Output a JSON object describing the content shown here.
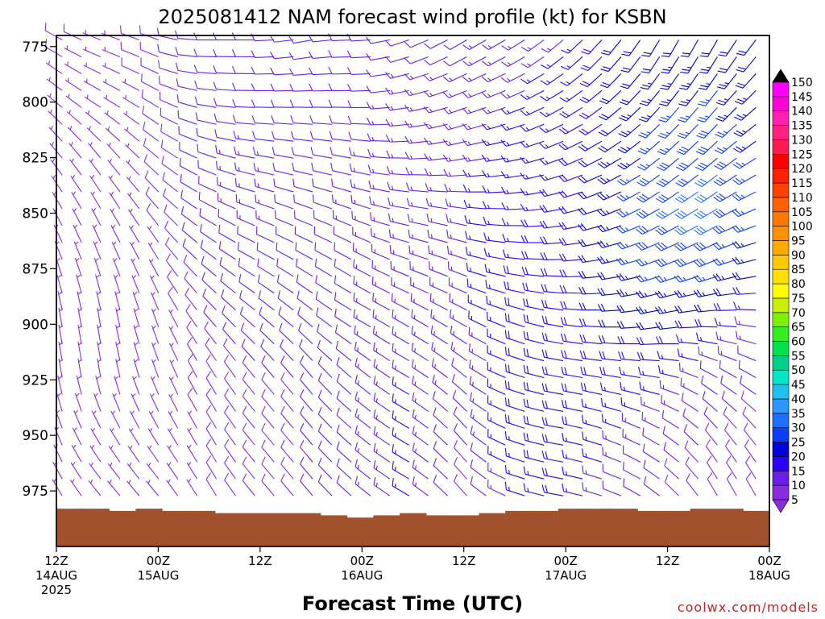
{
  "chart_data": {
    "type": "wind_barbs",
    "title": "2025081412 NAM forecast wind profile (kt) for KSBN",
    "xlabel": "Forecast Time (UTC)",
    "credit": "coolwx.com/models",
    "y_units": "hPa",
    "ylim": [
      1000,
      770
    ],
    "y_ticks": [
      775,
      800,
      825,
      850,
      875,
      900,
      925,
      950,
      975
    ],
    "x_hours_range": [
      0,
      84
    ],
    "x_ticks": [
      {
        "hour": 0,
        "label": "12Z",
        "sub": "14AUG",
        "sub2": "2025"
      },
      {
        "hour": 12,
        "label": "00Z",
        "sub": "15AUG",
        "sub2": ""
      },
      {
        "hour": 24,
        "label": "12Z",
        "sub": "",
        "sub2": ""
      },
      {
        "hour": 36,
        "label": "00Z",
        "sub": "16AUG",
        "sub2": ""
      },
      {
        "hour": 48,
        "label": "12Z",
        "sub": "",
        "sub2": ""
      },
      {
        "hour": 60,
        "label": "00Z",
        "sub": "17AUG",
        "sub2": ""
      },
      {
        "hour": 72,
        "label": "12Z",
        "sub": "",
        "sub2": ""
      },
      {
        "hour": 84,
        "label": "00Z",
        "sub": "18AUG",
        "sub2": ""
      }
    ],
    "colorbar": {
      "units": "kt",
      "levels": [
        5,
        10,
        15,
        20,
        25,
        30,
        35,
        40,
        45,
        50,
        55,
        60,
        65,
        70,
        75,
        80,
        85,
        90,
        95,
        100,
        105,
        110,
        115,
        120,
        125,
        130,
        135,
        140,
        145,
        150
      ],
      "colors": [
        "#8a2be2",
        "#6a1ee6",
        "#2a00ff",
        "#0000dd",
        "#0a3cff",
        "#1e6eff",
        "#2a96ff",
        "#1ec0f0",
        "#00e6c8",
        "#00d08c",
        "#00e050",
        "#33ee22",
        "#7ef000",
        "#c8f000",
        "#ffff00",
        "#ffe000",
        "#ffc800",
        "#ffaa00",
        "#ff9000",
        "#ff7800",
        "#ff6000",
        "#ff4000",
        "#ff2000",
        "#ff0000",
        "#ff1a50",
        "#ff2080",
        "#ff20b0",
        "#ff00d8",
        "#ff00ff"
      ]
    },
    "surface": {
      "color": "#a0522d",
      "pressure_hpa": [
        983,
        983,
        984,
        983,
        984,
        984,
        985,
        985,
        985,
        985,
        986,
        987,
        986,
        985,
        986,
        986,
        985,
        984,
        984,
        983,
        983,
        983,
        984,
        984,
        983,
        983,
        984
      ]
    },
    "wind_profile_note": "barb field; each barb = wind direction (deg) and speed (kt) at hour/pressure",
    "wind_profile_columns": [
      {
        "hour": 0,
        "levels": [
          [
            775,
            300,
            8
          ],
          [
            800,
            310,
            6
          ],
          [
            825,
            320,
            7
          ],
          [
            850,
            330,
            7
          ],
          [
            875,
            340,
            6
          ],
          [
            900,
            350,
            5
          ],
          [
            925,
            350,
            4
          ],
          [
            950,
            340,
            4
          ],
          [
            975,
            330,
            4
          ]
        ]
      },
      {
        "hour": 6,
        "levels": [
          [
            775,
            290,
            7
          ],
          [
            800,
            300,
            6
          ],
          [
            825,
            320,
            6
          ],
          [
            850,
            330,
            6
          ],
          [
            875,
            340,
            5
          ],
          [
            900,
            350,
            4
          ],
          [
            925,
            350,
            4
          ],
          [
            950,
            330,
            3
          ],
          [
            975,
            320,
            3
          ]
        ]
      },
      {
        "hour": 12,
        "levels": [
          [
            775,
            290,
            9
          ],
          [
            800,
            300,
            8
          ],
          [
            825,
            310,
            8
          ],
          [
            850,
            320,
            8
          ],
          [
            875,
            330,
            7
          ],
          [
            900,
            340,
            6
          ],
          [
            925,
            340,
            5
          ],
          [
            950,
            330,
            5
          ],
          [
            975,
            320,
            5
          ]
        ]
      },
      {
        "hour": 18,
        "levels": [
          [
            775,
            270,
            12
          ],
          [
            800,
            280,
            12
          ],
          [
            825,
            290,
            12
          ],
          [
            850,
            300,
            12
          ],
          [
            875,
            310,
            11
          ],
          [
            900,
            320,
            10
          ],
          [
            925,
            330,
            9
          ],
          [
            950,
            330,
            8
          ],
          [
            975,
            330,
            8
          ]
        ]
      },
      {
        "hour": 24,
        "levels": [
          [
            775,
            270,
            12
          ],
          [
            800,
            270,
            12
          ],
          [
            825,
            280,
            13
          ],
          [
            850,
            290,
            13
          ],
          [
            875,
            300,
            12
          ],
          [
            900,
            310,
            11
          ],
          [
            925,
            320,
            10
          ],
          [
            950,
            320,
            9
          ],
          [
            975,
            320,
            8
          ]
        ]
      },
      {
        "hour": 30,
        "levels": [
          [
            775,
            260,
            10
          ],
          [
            800,
            270,
            11
          ],
          [
            825,
            280,
            12
          ],
          [
            850,
            290,
            12
          ],
          [
            875,
            300,
            11
          ],
          [
            900,
            310,
            10
          ],
          [
            925,
            320,
            10
          ],
          [
            950,
            320,
            10
          ],
          [
            975,
            320,
            10
          ]
        ]
      },
      {
        "hour": 36,
        "levels": [
          [
            775,
            270,
            10
          ],
          [
            800,
            270,
            11
          ],
          [
            825,
            280,
            12
          ],
          [
            850,
            290,
            13
          ],
          [
            875,
            300,
            12
          ],
          [
            900,
            300,
            12
          ],
          [
            925,
            310,
            12
          ],
          [
            950,
            310,
            12
          ],
          [
            975,
            310,
            12
          ]
        ]
      },
      {
        "hour": 42,
        "levels": [
          [
            775,
            250,
            12
          ],
          [
            800,
            260,
            14
          ],
          [
            825,
            270,
            15
          ],
          [
            850,
            280,
            15
          ],
          [
            875,
            290,
            15
          ],
          [
            900,
            300,
            15
          ],
          [
            925,
            300,
            15
          ],
          [
            950,
            300,
            16
          ],
          [
            975,
            300,
            16
          ]
        ]
      },
      {
        "hour": 48,
        "levels": [
          [
            775,
            240,
            12
          ],
          [
            800,
            250,
            13
          ],
          [
            825,
            260,
            14
          ],
          [
            850,
            280,
            14
          ],
          [
            875,
            290,
            14
          ],
          [
            900,
            300,
            13
          ],
          [
            925,
            310,
            12
          ],
          [
            950,
            320,
            10
          ],
          [
            975,
            320,
            8
          ]
        ]
      },
      {
        "hour": 54,
        "levels": [
          [
            775,
            240,
            14
          ],
          [
            800,
            250,
            15
          ],
          [
            825,
            260,
            16
          ],
          [
            850,
            270,
            17
          ],
          [
            875,
            280,
            17
          ],
          [
            900,
            290,
            18
          ],
          [
            925,
            290,
            18
          ],
          [
            950,
            290,
            17
          ],
          [
            975,
            290,
            16
          ]
        ]
      },
      {
        "hour": 60,
        "levels": [
          [
            775,
            230,
            15
          ],
          [
            800,
            240,
            16
          ],
          [
            825,
            250,
            17
          ],
          [
            850,
            260,
            18
          ],
          [
            875,
            270,
            19
          ],
          [
            900,
            280,
            20
          ],
          [
            925,
            280,
            20
          ],
          [
            950,
            280,
            19
          ],
          [
            975,
            280,
            18
          ]
        ]
      },
      {
        "hour": 66,
        "levels": [
          [
            775,
            220,
            20
          ],
          [
            800,
            230,
            21
          ],
          [
            825,
            240,
            22
          ],
          [
            850,
            250,
            23
          ],
          [
            875,
            260,
            22
          ],
          [
            900,
            270,
            20
          ],
          [
            925,
            280,
            18
          ],
          [
            950,
            290,
            15
          ],
          [
            975,
            290,
            12
          ]
        ]
      },
      {
        "hour": 72,
        "levels": [
          [
            775,
            210,
            22
          ],
          [
            800,
            220,
            25
          ],
          [
            825,
            230,
            28
          ],
          [
            850,
            240,
            30
          ],
          [
            875,
            250,
            28
          ],
          [
            900,
            260,
            22
          ],
          [
            925,
            280,
            16
          ],
          [
            950,
            300,
            12
          ],
          [
            975,
            310,
            10
          ]
        ]
      },
      {
        "hour": 78,
        "levels": [
          [
            775,
            210,
            22
          ],
          [
            800,
            220,
            26
          ],
          [
            825,
            230,
            30
          ],
          [
            850,
            240,
            32
          ],
          [
            875,
            250,
            28
          ],
          [
            900,
            270,
            18
          ],
          [
            925,
            300,
            12
          ],
          [
            950,
            320,
            10
          ],
          [
            975,
            330,
            8
          ]
        ]
      },
      {
        "hour": 84,
        "levels": [
          [
            775,
            220,
            20
          ],
          [
            800,
            230,
            22
          ],
          [
            825,
            240,
            24
          ],
          [
            850,
            250,
            24
          ],
          [
            875,
            260,
            20
          ],
          [
            900,
            280,
            14
          ],
          [
            925,
            300,
            10
          ],
          [
            950,
            320,
            8
          ],
          [
            975,
            330,
            8
          ]
        ]
      }
    ]
  }
}
